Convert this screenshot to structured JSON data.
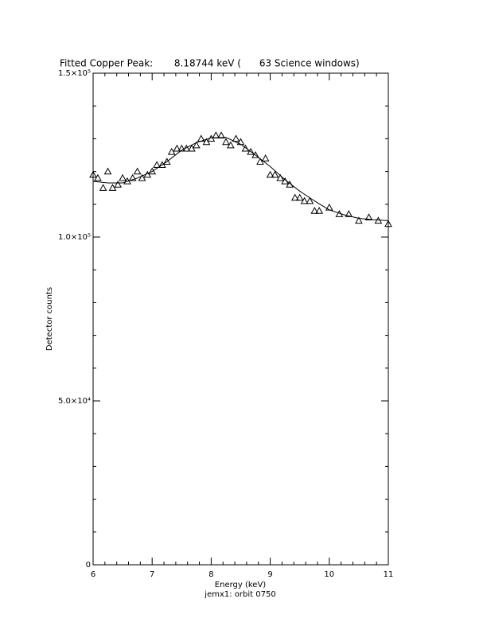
{
  "chart_data": {
    "type": "scatter",
    "title": "Fitted Copper Peak:       8.18744 keV (      63 Science windows)",
    "xlabel": "Energy (keV)",
    "ylabel": "Detector counts",
    "footnote": "jemx1: orbit 0750",
    "xlim": [
      6,
      11
    ],
    "xticks": [
      6,
      7,
      8,
      9,
      10,
      11
    ],
    "xminorticks": [
      6.2,
      6.4,
      6.6,
      6.8,
      7.2,
      7.4,
      7.6,
      7.8,
      8.2,
      8.4,
      8.6,
      8.8,
      9.2,
      9.4,
      9.6,
      9.8,
      10.2,
      10.4,
      10.6,
      10.8
    ],
    "ylim": [
      0,
      150000
    ],
    "yticks": [
      0,
      {
        "value": 50000,
        "label": "5.0×10⁴"
      },
      {
        "value": 100000,
        "label": "1.0×10⁵"
      },
      {
        "value": 150000,
        "label": "1.5×10⁵"
      }
    ],
    "yminorticks": [
      10000,
      20000,
      30000,
      40000,
      60000,
      70000,
      80000,
      90000,
      110000,
      120000,
      130000,
      140000
    ],
    "series": [
      {
        "color": "#000000",
        "marker": "triangle",
        "x": [
          6.0,
          6.08,
          6.17,
          6.25,
          6.33,
          6.42,
          6.5,
          6.58,
          6.67,
          6.75,
          6.83,
          6.92,
          7.0,
          7.08,
          7.17,
          7.25,
          7.33,
          7.42,
          7.5,
          7.58,
          7.67,
          7.75,
          7.83,
          7.92,
          8.0,
          8.08,
          8.17,
          8.25,
          8.33,
          8.42,
          8.5,
          8.58,
          8.67,
          8.75,
          8.83,
          8.92,
          9.0,
          9.08,
          9.17,
          9.25,
          9.33,
          9.42,
          9.5,
          9.58,
          9.67,
          9.75,
          9.83,
          10.0,
          10.17,
          10.33,
          10.5,
          10.67,
          10.83,
          11.0
        ],
        "values": [
          119000,
          118000,
          115000,
          120000,
          115000,
          116000,
          118000,
          117000,
          118000,
          120000,
          118000,
          119000,
          120000,
          122000,
          122000,
          123000,
          126000,
          127000,
          127000,
          127000,
          127000,
          128000,
          130000,
          129000,
          130000,
          131000,
          131000,
          129000,
          128000,
          130000,
          129000,
          127000,
          126000,
          125000,
          123000,
          124000,
          119000,
          119000,
          118000,
          117000,
          116000,
          112000,
          112000,
          111000,
          111000,
          108000,
          108000,
          109000,
          107000,
          107000,
          105000,
          106000,
          105000,
          104000
        ]
      },
      {
        "color": "#000000",
        "marker": "line",
        "x": [
          6.0,
          6.25,
          6.5,
          6.75,
          7.0,
          7.25,
          7.5,
          7.75,
          8.0,
          8.25,
          8.5,
          8.75,
          9.0,
          9.25,
          9.5,
          9.75,
          10.0,
          10.25,
          10.5,
          10.75,
          11.0
        ],
        "values": [
          117000,
          116500,
          116500,
          118000,
          120000,
          123000,
          126500,
          128800,
          130300,
          130400,
          128300,
          125000,
          121500,
          117500,
          114000,
          111000,
          108300,
          106800,
          105700,
          105300,
          105000
        ]
      }
    ]
  }
}
